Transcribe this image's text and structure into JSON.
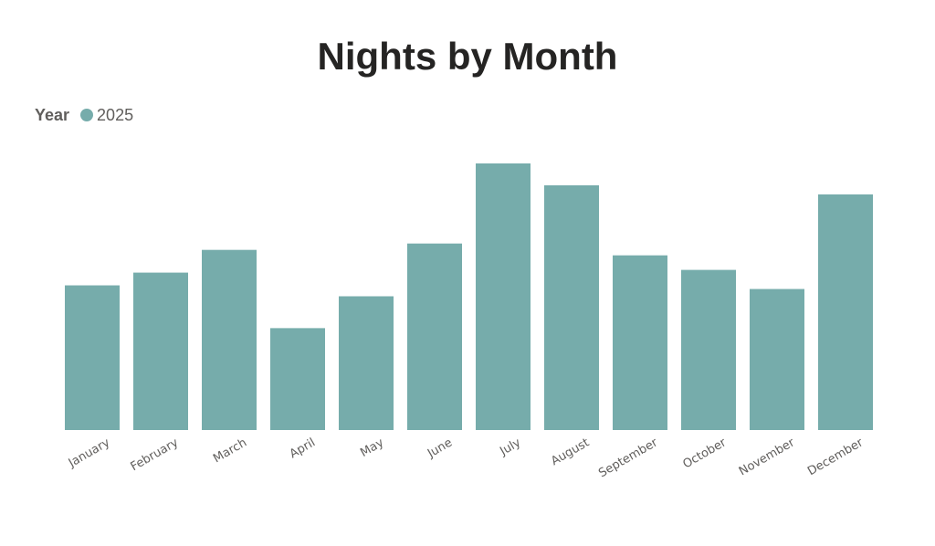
{
  "chart_data": {
    "type": "bar",
    "title": "Nights by Month",
    "legend_title": "Year",
    "legend_position": "top-left",
    "categories": [
      "January",
      "February",
      "March",
      "April",
      "May",
      "June",
      "July",
      "August",
      "September",
      "October",
      "November",
      "December"
    ],
    "series": [
      {
        "name": "2025",
        "color": "#76acab",
        "values": [
          159,
          173,
          198,
          112,
          147,
          205,
          293,
          269,
          192,
          176,
          155,
          259
        ]
      }
    ],
    "ylim": [
      0,
      300
    ],
    "grid": false
  }
}
